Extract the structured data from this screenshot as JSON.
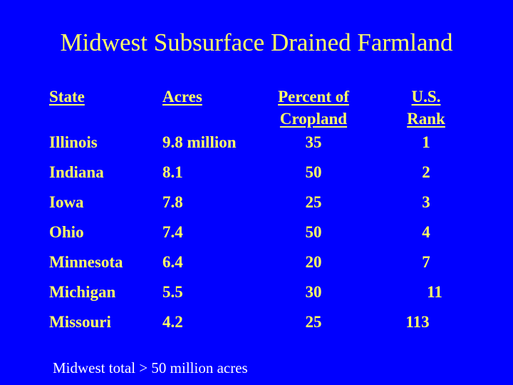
{
  "slide": {
    "title": "Midwest Subsurface Drained Farmland",
    "footer": "Midwest total > 50 million acres"
  },
  "table": {
    "headers": {
      "state": "State",
      "acres": "Acres",
      "pct_line1": "Percent of",
      "pct_line2": "Cropland",
      "rank_line1": "U.S.",
      "rank_line2": "Rank"
    },
    "rows": [
      {
        "state": "Illinois",
        "acres": "9.8 million",
        "pct": "35",
        "rank": "1"
      },
      {
        "state": "Indiana",
        "acres": "8.1",
        "pct": "50",
        "rank": "2"
      },
      {
        "state": "Iowa",
        "acres": "7.8",
        "pct": "25",
        "rank": "3"
      },
      {
        "state": "Ohio",
        "acres": "7.4",
        "pct": "50",
        "rank": "4"
      },
      {
        "state": "Minnesota",
        "acres": "6.4",
        "pct": "20",
        "rank": "7"
      },
      {
        "state": "Michigan",
        "acres": "5.5",
        "pct": "30",
        "rank": "11"
      },
      {
        "state": "Missouri",
        "acres": "4.2",
        "pct": "25",
        "rank": "113"
      }
    ]
  },
  "colors": {
    "background": "#0000FF",
    "table_text": "#FFFF66",
    "footer_text": "#FFFFFF"
  }
}
